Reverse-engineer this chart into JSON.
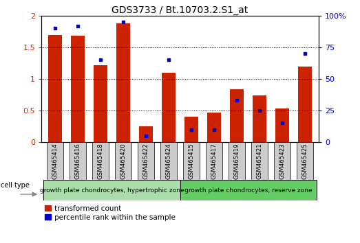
{
  "title": "GDS3733 / Bt.10703.2.S1_at",
  "samples": [
    "GSM465414",
    "GSM465416",
    "GSM465418",
    "GSM465420",
    "GSM465422",
    "GSM465424",
    "GSM465415",
    "GSM465417",
    "GSM465419",
    "GSM465421",
    "GSM465423",
    "GSM465425"
  ],
  "red_values": [
    1.7,
    1.68,
    1.22,
    1.88,
    0.25,
    1.1,
    0.4,
    0.47,
    0.84,
    0.74,
    0.53,
    1.2
  ],
  "blue_values": [
    90,
    92,
    65,
    95,
    5,
    65,
    10,
    10,
    33,
    25,
    15,
    70
  ],
  "group1_label": "growth plate chondrocytes, hypertrophic zone",
  "group2_label": "growth plate chondrocytes, reserve zone",
  "group1_count": 6,
  "group2_count": 6,
  "cell_type_label": "cell type",
  "legend1": "transformed count",
  "legend2": "percentile rank within the sample",
  "ylim_left": [
    0,
    2
  ],
  "ylim_right": [
    0,
    100
  ],
  "yticks_left": [
    0,
    0.5,
    1.0,
    1.5,
    2.0
  ],
  "ytick_labels_left": [
    "0",
    "0.5",
    "1",
    "1.5",
    "2"
  ],
  "yticks_right": [
    0,
    25,
    50,
    75,
    100
  ],
  "ytick_labels_right": [
    "0",
    "25",
    "50",
    "75",
    "100%"
  ],
  "red_color": "#cc2200",
  "blue_color": "#0000cc",
  "bar_width": 0.6,
  "group1_color": "#aaddaa",
  "group2_color": "#66cc66",
  "tick_bg_color": "#cccccc",
  "background_color": "#ffffff"
}
